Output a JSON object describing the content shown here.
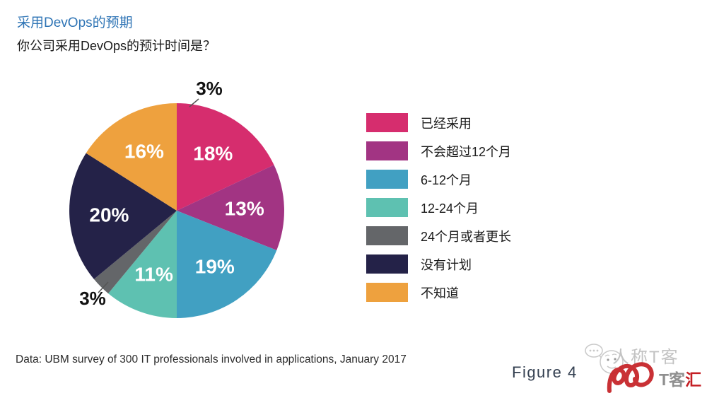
{
  "header": {
    "title": "采用DevOps的预期",
    "subtitle": "你公司采用DevOps的预计时间是？"
  },
  "chart_data": {
    "type": "pie",
    "title": "你公司采用DevOps的预计时间是？",
    "units": "%",
    "start_angle_deg": 0,
    "direction": "clockwise",
    "legend_position": "right",
    "slices": [
      {
        "label": "已经采用",
        "value": 18,
        "display": "18%",
        "color": "#D62D6E",
        "label_pos": "inside"
      },
      {
        "label": "不会超过12个月",
        "value": 13,
        "display": "13%",
        "color": "#A23483",
        "label_pos": "inside"
      },
      {
        "label": "6-12个月",
        "value": 19,
        "display": "19%",
        "color": "#41A0C2",
        "label_pos": "inside"
      },
      {
        "label": "12-24个月",
        "value": 11,
        "display": "11%",
        "color": "#5EC1B1",
        "label_pos": "inside"
      },
      {
        "label": "24个月或者更长",
        "value": 3,
        "display": "3%",
        "color": "#646669",
        "label_pos": "outside"
      },
      {
        "label": "没有计划",
        "value": 20,
        "display": "20%",
        "color": "#242248",
        "label_pos": "inside"
      },
      {
        "label": "不知道",
        "value": 16,
        "display": "16%",
        "color": "#EEA13E",
        "label_pos": "inside"
      }
    ],
    "annotations": [
      {
        "text": "3%",
        "position": "top-outside"
      }
    ]
  },
  "footer": {
    "source_note": "Data: UBM survey of 300 IT professionals involved in applications, January 2017",
    "figure_label": "Figure 4"
  },
  "watermark": {
    "brand": "人称T客",
    "sub_brand_gray": "T客",
    "sub_brand_red": "汇"
  }
}
